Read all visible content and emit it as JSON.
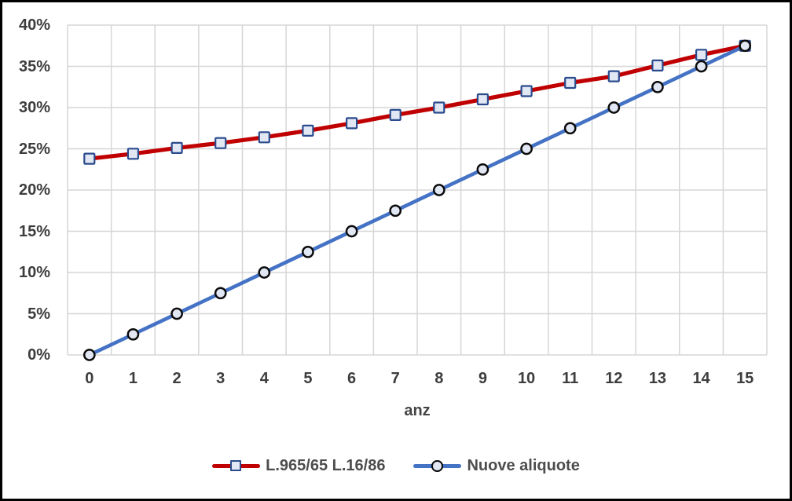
{
  "chart_data": {
    "type": "line",
    "title": "",
    "xlabel": "anz",
    "ylabel": "",
    "x": [
      0,
      1,
      2,
      3,
      4,
      5,
      6,
      7,
      8,
      9,
      10,
      11,
      12,
      13,
      14,
      15
    ],
    "x_tick_labels": [
      "0",
      "1",
      "2",
      "3",
      "4",
      "5",
      "6",
      "7",
      "8",
      "9",
      "10",
      "11",
      "12",
      "13",
      "14",
      "15"
    ],
    "y_tick_labels": [
      "40%",
      "35%",
      "30%",
      "25%",
      "20%",
      "15%",
      "10%",
      "5%",
      "0%"
    ],
    "ylim": [
      0,
      40
    ],
    "y_step": 5,
    "grid": true,
    "gridline_color": "#d6d6d6",
    "legend_position": "bottom",
    "series": [
      {
        "name": "L.965/65 L.16/86",
        "color": "#c00000",
        "marker": "square",
        "marker_fill": "#e2e7f4",
        "marker_outline": "#2a4b8d",
        "values": [
          23.8,
          24.4,
          25.1,
          25.7,
          26.4,
          27.2,
          28.1,
          29.1,
          30.0,
          31.0,
          32.0,
          33.0,
          33.8,
          35.1,
          36.4,
          37.5
        ]
      },
      {
        "name": "Nuove aliquote",
        "color": "#4472c4",
        "marker": "circle",
        "marker_fill": "#e2e7f4",
        "marker_outline": "#0b0b0b",
        "values": [
          0.0,
          2.5,
          5.0,
          7.5,
          10.0,
          12.5,
          15.0,
          17.5,
          20.0,
          22.5,
          25.0,
          27.5,
          30.0,
          32.5,
          35.0,
          37.5
        ]
      }
    ]
  },
  "tick_text_color": "#3d3d3d",
  "legend_text_color": "#4d4d4d",
  "frame_border_color": "#000000"
}
